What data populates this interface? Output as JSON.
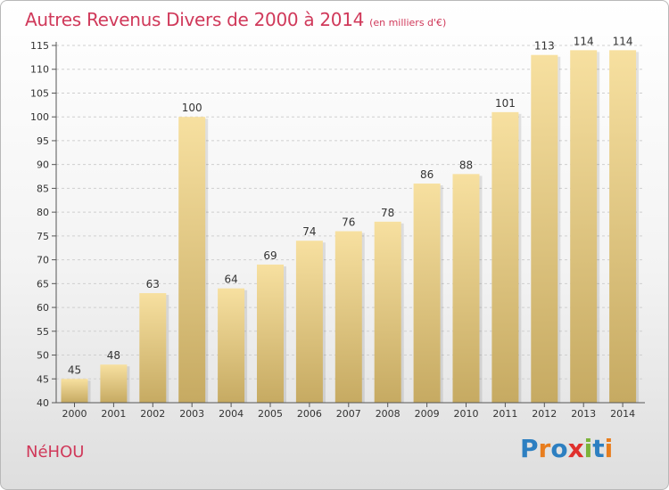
{
  "page": {
    "title": "Autres Revenus Divers de 2000 à 2014",
    "subtitle": "(en milliers d'€)",
    "place": "NéHOU",
    "logo": {
      "text": "Proxiti",
      "letters": [
        {
          "ch": "P",
          "color": "#2d7fc1"
        },
        {
          "ch": "r",
          "color": "#e87d1e"
        },
        {
          "ch": "o",
          "color": "#2d7fc1"
        },
        {
          "ch": "x",
          "color": "#e0302d"
        },
        {
          "ch": "i",
          "color": "#7bb33a"
        },
        {
          "ch": "t",
          "color": "#2d7fc1"
        },
        {
          "ch": "i",
          "color": "#e87d1e"
        }
      ]
    }
  },
  "colors": {
    "accent": "#d0395a",
    "bar_top": "#f7e0a0",
    "bar_bottom": "#c6aa62",
    "grid": "#cfcfcf",
    "axis": "#555555",
    "text": "#333333"
  },
  "chart_data": {
    "type": "bar",
    "title": "Autres Revenus Divers de 2000 à 2014",
    "subtitle": "(en milliers d'€)",
    "xlabel": "",
    "ylabel": "",
    "categories": [
      "2000",
      "2001",
      "2002",
      "2003",
      "2004",
      "2005",
      "2006",
      "2007",
      "2008",
      "2009",
      "2010",
      "2011",
      "2012",
      "2013",
      "2014"
    ],
    "values": [
      45,
      48,
      63,
      100,
      64,
      69,
      74,
      76,
      78,
      86,
      88,
      101,
      113,
      114,
      114
    ],
    "ylim": [
      40,
      115
    ],
    "yticks": [
      40,
      45,
      50,
      55,
      60,
      65,
      70,
      75,
      80,
      85,
      90,
      95,
      100,
      105,
      110,
      115
    ],
    "grid": true,
    "data_labels": true
  }
}
